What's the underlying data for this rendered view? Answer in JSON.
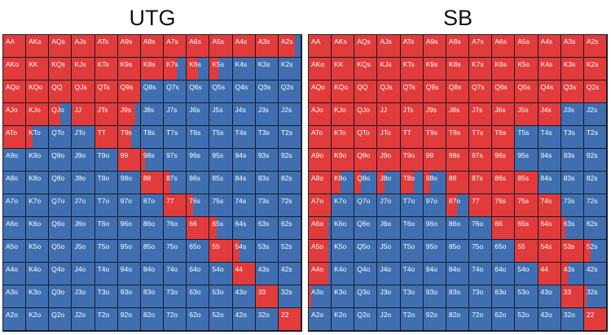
{
  "colors": {
    "raise": "#e23b3b",
    "fold": "#3f6fb0",
    "border": "#1a1a2a"
  },
  "legend_note": "Cells: red fill = opening/raising portion, blue = fold",
  "ranks": [
    "A",
    "K",
    "Q",
    "J",
    "T",
    "9",
    "8",
    "7",
    "6",
    "5",
    "4",
    "3",
    "2"
  ],
  "charts": [
    {
      "id": "utg",
      "title": "UTG",
      "raise_fraction": [
        [
          1,
          1,
          1,
          1,
          1,
          1,
          1,
          1,
          1,
          1,
          1,
          1,
          0.75
        ],
        [
          1,
          1,
          1,
          1,
          1,
          1,
          1,
          0.6,
          0.5,
          0.4,
          0,
          0,
          0
        ],
        [
          1,
          1,
          1,
          1,
          1,
          1,
          0,
          0,
          0,
          0,
          0,
          0,
          0
        ],
        [
          1,
          1,
          0.5,
          1,
          1,
          0.8,
          0,
          0,
          0,
          0,
          0,
          0,
          0
        ],
        [
          1,
          0.3,
          0,
          0,
          1,
          0.6,
          0,
          0,
          0,
          0,
          0,
          0,
          0
        ],
        [
          0,
          0,
          0,
          0,
          0,
          1,
          0.2,
          0,
          0,
          0,
          0,
          0,
          0
        ],
        [
          0,
          0,
          0,
          0,
          0,
          0,
          1,
          0.3,
          0,
          0,
          0,
          0,
          0
        ],
        [
          0,
          0,
          0,
          0,
          0,
          0,
          0,
          1,
          0.3,
          0,
          0,
          0,
          0
        ],
        [
          0,
          0,
          0,
          0,
          0,
          0,
          0,
          0,
          1,
          0.3,
          0,
          0,
          0
        ],
        [
          0,
          0,
          0,
          0,
          0,
          0,
          0,
          0,
          0,
          1,
          0.3,
          0,
          0
        ],
        [
          0,
          0,
          0,
          0,
          0,
          0,
          0,
          0,
          0,
          0,
          1,
          0,
          0
        ],
        [
          0,
          0,
          0,
          0,
          0,
          0,
          0,
          0,
          0,
          0,
          0,
          1,
          0
        ],
        [
          0,
          0,
          0,
          0,
          0,
          0,
          0,
          0,
          0,
          0,
          0,
          0,
          1
        ]
      ]
    },
    {
      "id": "sb",
      "title": "SB",
      "raise_fraction": [
        [
          1,
          1,
          1,
          1,
          1,
          1,
          1,
          1,
          1,
          1,
          1,
          1,
          1
        ],
        [
          1,
          1,
          1,
          1,
          1,
          1,
          1,
          1,
          1,
          1,
          1,
          1,
          1
        ],
        [
          1,
          1,
          1,
          1,
          1,
          1,
          1,
          1,
          1,
          1,
          1,
          1,
          1
        ],
        [
          1,
          1,
          1,
          1,
          1,
          1,
          1,
          1,
          1,
          1,
          1,
          0,
          0
        ],
        [
          1,
          1,
          1,
          1,
          1,
          1,
          1,
          1,
          1,
          0,
          0,
          0,
          0
        ],
        [
          1,
          1,
          1,
          1,
          1,
          1,
          1,
          1,
          1,
          0,
          0,
          0,
          0
        ],
        [
          1,
          0.4,
          0.3,
          0.3,
          0.6,
          0.3,
          1,
          1,
          1,
          1,
          0,
          0,
          0
        ],
        [
          1,
          0,
          0,
          0,
          0,
          0,
          0.5,
          1,
          1,
          1,
          1,
          0,
          0
        ],
        [
          0.9,
          0,
          0,
          0,
          0,
          0,
          0,
          0,
          1,
          1,
          1,
          0.2,
          0
        ],
        [
          0.9,
          0,
          0,
          0,
          0,
          0,
          0,
          0,
          0,
          1,
          1,
          1,
          0.3
        ],
        [
          0.9,
          0,
          0,
          0,
          0,
          0,
          0,
          0,
          0,
          0,
          1,
          0.3,
          0
        ],
        [
          0.1,
          0,
          0,
          0,
          0,
          0,
          0,
          0,
          0,
          0,
          0,
          1,
          0.1
        ],
        [
          0,
          0,
          0,
          0,
          0,
          0,
          0,
          0,
          0,
          0,
          0,
          0,
          1
        ]
      ]
    }
  ],
  "hand_labels": [
    [
      "AA",
      "AKs",
      "AQs",
      "AJs",
      "ATs",
      "A9s",
      "A8s",
      "A7s",
      "A6s",
      "A5s",
      "A4s",
      "A3s",
      "A2s"
    ],
    [
      "AKo",
      "KK",
      "KQs",
      "KJs",
      "KTs",
      "K9s",
      "K8s",
      "K7s",
      "K6s",
      "K5s",
      "K4s",
      "K3s",
      "K2s"
    ],
    [
      "AQo",
      "KQo",
      "QQ",
      "QJs",
      "QTs",
      "Q9s",
      "Q8s",
      "Q7s",
      "Q6s",
      "Q5s",
      "Q4s",
      "Q3s",
      "Q2s"
    ],
    [
      "AJo",
      "KJo",
      "QJo",
      "JJ",
      "JTs",
      "J9s",
      "J8s",
      "J7s",
      "J6s",
      "J5s",
      "J4s",
      "J3s",
      "J2s"
    ],
    [
      "ATo",
      "KTo",
      "QTo",
      "JTo",
      "TT",
      "T9s",
      "T8s",
      "T7s",
      "T6s",
      "T5s",
      "T4s",
      "T3s",
      "T2s"
    ],
    [
      "A9o",
      "K9o",
      "Q9o",
      "J9o",
      "T9o",
      "99",
      "98s",
      "97s",
      "96s",
      "95s",
      "94s",
      "93s",
      "92s"
    ],
    [
      "A8o",
      "K8o",
      "Q8o",
      "J8o",
      "T8o",
      "98o",
      "88",
      "87s",
      "86s",
      "85s",
      "84s",
      "83s",
      "82s"
    ],
    [
      "A7o",
      "K7o",
      "Q7o",
      "J7o",
      "T7o",
      "97o",
      "87o",
      "77",
      "76s",
      "75s",
      "74s",
      "73s",
      "72s"
    ],
    [
      "A6o",
      "K6o",
      "Q6o",
      "J6o",
      "T6o",
      "96o",
      "86o",
      "76o",
      "66",
      "65s",
      "64s",
      "63s",
      "62s"
    ],
    [
      "A5o",
      "K5o",
      "Q5o",
      "J5o",
      "T5o",
      "95o",
      "85o",
      "75o",
      "65o",
      "55",
      "54s",
      "53s",
      "52s"
    ],
    [
      "A4o",
      "K4o",
      "Q4o",
      "J4o",
      "T4o",
      "94o",
      "84o",
      "74o",
      "64o",
      "54o",
      "44",
      "43s",
      "42s"
    ],
    [
      "A3o",
      "K3o",
      "Q3o",
      "J3o",
      "T3o",
      "93o",
      "83o",
      "73o",
      "63o",
      "53o",
      "43o",
      "33",
      "32s"
    ],
    [
      "A2o",
      "K2o",
      "Q2o",
      "J2o",
      "T2o",
      "92o",
      "82o",
      "72o",
      "62o",
      "52o",
      "42o",
      "32o",
      "22"
    ]
  ]
}
